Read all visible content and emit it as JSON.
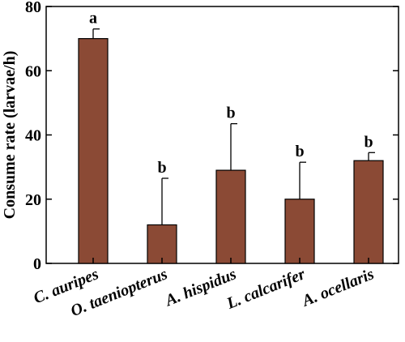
{
  "chart_data": {
    "type": "bar",
    "title": "",
    "xlabel": "",
    "ylabel": "Consume rate (larvae/h)",
    "ylim": [
      0,
      80
    ],
    "yticks": [
      0,
      20,
      40,
      60,
      80
    ],
    "grid": false,
    "bar_color": "#8b4a35",
    "categories": [
      "C. auripes",
      "O. taeniopterus",
      "A. hispidus",
      "L. calcarifer",
      "A. ocellaris"
    ],
    "values": [
      70,
      12,
      29,
      20,
      32
    ],
    "errors": [
      3,
      14.5,
      14.5,
      11.5,
      2.5
    ],
    "significance": [
      "a",
      "b",
      "b",
      "b",
      "b"
    ]
  }
}
